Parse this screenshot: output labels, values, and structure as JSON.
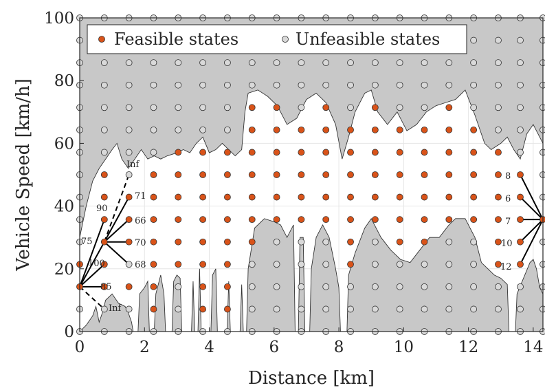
{
  "chart_data": {
    "type": "scatter",
    "xlabel": "Distance [km]",
    "ylabel": "Vehicle Speed [km/h]",
    "xlim": [
      0,
      14.3
    ],
    "ylim": [
      0,
      100
    ],
    "xticks": [
      0,
      2,
      4,
      6,
      8,
      10,
      12,
      14
    ],
    "yticks": [
      0,
      20,
      40,
      60,
      80,
      100
    ],
    "grid": true,
    "legend_position": "top",
    "legend": [
      {
        "label": "Feasible states",
        "color": "#d95319"
      },
      {
        "label": "Unfeasible states",
        "color": "#d9d9d9"
      }
    ],
    "x_grid_states": [
      0,
      0.76,
      1.52,
      2.28,
      3.04,
      3.8,
      4.56,
      5.32,
      6.08,
      6.84,
      7.6,
      8.36,
      9.12,
      9.88,
      10.64,
      11.4,
      12.16,
      12.92,
      13.6,
      14.3
    ],
    "y_grid_states": [
      0,
      7.14,
      14.29,
      21.43,
      28.57,
      35.71,
      42.86,
      50,
      57.14,
      64.29,
      71.43,
      78.57,
      85.71,
      92.86,
      100
    ],
    "upper_boundary": [
      [
        0,
        30
      ],
      [
        0.2,
        40
      ],
      [
        0.4,
        48
      ],
      [
        0.6,
        52
      ],
      [
        0.8,
        55
      ],
      [
        1,
        58
      ],
      [
        1.15,
        60
      ],
      [
        1.3,
        55
      ],
      [
        1.5,
        52
      ],
      [
        1.7,
        55
      ],
      [
        1.9,
        58
      ],
      [
        2.1,
        55
      ],
      [
        2.3,
        56
      ],
      [
        2.5,
        55
      ],
      [
        2.7,
        56
      ],
      [
        3.0,
        57
      ],
      [
        3.2,
        58
      ],
      [
        3.4,
        57
      ],
      [
        3.6,
        60
      ],
      [
        3.8,
        62
      ],
      [
        4.0,
        57
      ],
      [
        4.2,
        58
      ],
      [
        4.4,
        60
      ],
      [
        4.6,
        58
      ],
      [
        4.8,
        56
      ],
      [
        5.0,
        58
      ],
      [
        5.1,
        70
      ],
      [
        5.2,
        76
      ],
      [
        5.5,
        77
      ],
      [
        5.8,
        75
      ],
      [
        6.1,
        72
      ],
      [
        6.4,
        66
      ],
      [
        6.7,
        68
      ],
      [
        7.0,
        74
      ],
      [
        7.3,
        76
      ],
      [
        7.6,
        73
      ],
      [
        7.9,
        66
      ],
      [
        8.1,
        55
      ],
      [
        8.3,
        62
      ],
      [
        8.5,
        70
      ],
      [
        8.8,
        76
      ],
      [
        9.0,
        77
      ],
      [
        9.2,
        70
      ],
      [
        9.5,
        66
      ],
      [
        9.8,
        70
      ],
      [
        10.1,
        64
      ],
      [
        10.4,
        66
      ],
      [
        10.7,
        70
      ],
      [
        11.0,
        72
      ],
      [
        11.3,
        73
      ],
      [
        11.6,
        74
      ],
      [
        11.9,
        77
      ],
      [
        12.2,
        69
      ],
      [
        12.5,
        60
      ],
      [
        12.7,
        58
      ],
      [
        13.0,
        60
      ],
      [
        13.2,
        62
      ],
      [
        13.4,
        58
      ],
      [
        13.6,
        55
      ],
      [
        13.8,
        63
      ],
      [
        14.0,
        66
      ],
      [
        14.2,
        62
      ],
      [
        14.3,
        60
      ]
    ],
    "lower_boundary": [
      [
        0,
        0
      ],
      [
        0.2,
        2
      ],
      [
        0.4,
        5
      ],
      [
        0.5,
        8
      ],
      [
        0.6,
        3
      ],
      [
        0.7,
        6
      ],
      [
        0.8,
        10
      ],
      [
        1.0,
        12
      ],
      [
        1.2,
        9
      ],
      [
        1.4,
        8
      ],
      [
        1.5,
        6
      ],
      [
        1.6,
        3
      ],
      [
        1.65,
        0
      ],
      [
        1.8,
        0
      ],
      [
        1.85,
        12
      ],
      [
        2.0,
        14
      ],
      [
        2.1,
        16
      ],
      [
        2.15,
        0
      ],
      [
        2.3,
        0
      ],
      [
        2.35,
        12
      ],
      [
        2.5,
        18
      ],
      [
        2.6,
        12
      ],
      [
        2.65,
        0
      ],
      [
        2.85,
        0
      ],
      [
        2.9,
        16
      ],
      [
        3.0,
        18
      ],
      [
        3.1,
        17
      ],
      [
        3.15,
        0
      ],
      [
        3.45,
        0
      ],
      [
        3.5,
        16
      ],
      [
        3.55,
        0
      ],
      [
        3.65,
        0
      ],
      [
        3.7,
        20
      ],
      [
        3.75,
        0
      ],
      [
        4.05,
        0
      ],
      [
        4.1,
        18
      ],
      [
        4.2,
        20
      ],
      [
        4.25,
        0
      ],
      [
        4.55,
        0
      ],
      [
        4.6,
        16
      ],
      [
        4.65,
        0
      ],
      [
        4.95,
        0
      ],
      [
        5.0,
        15
      ],
      [
        5.05,
        0
      ],
      [
        5.15,
        0
      ],
      [
        5.2,
        20
      ],
      [
        5.4,
        33
      ],
      [
        5.7,
        36
      ],
      [
        6.0,
        35
      ],
      [
        6.2,
        34
      ],
      [
        6.4,
        30
      ],
      [
        6.6,
        34
      ],
      [
        6.65,
        0
      ],
      [
        6.75,
        0
      ],
      [
        6.8,
        30
      ],
      [
        6.9,
        30
      ],
      [
        6.95,
        0
      ],
      [
        7.1,
        0
      ],
      [
        7.15,
        20
      ],
      [
        7.3,
        30
      ],
      [
        7.5,
        34
      ],
      [
        7.7,
        30
      ],
      [
        7.9,
        20
      ],
      [
        8.0,
        14
      ],
      [
        8.05,
        0
      ],
      [
        8.25,
        0
      ],
      [
        8.3,
        18
      ],
      [
        8.5,
        25
      ],
      [
        8.8,
        33
      ],
      [
        9.0,
        36
      ],
      [
        9.3,
        30
      ],
      [
        9.6,
        26
      ],
      [
        9.9,
        23
      ],
      [
        10.2,
        22
      ],
      [
        10.5,
        26
      ],
      [
        10.8,
        30
      ],
      [
        11.1,
        30
      ],
      [
        11.4,
        34
      ],
      [
        11.6,
        36
      ],
      [
        11.9,
        36
      ],
      [
        12.2,
        30
      ],
      [
        12.4,
        22
      ],
      [
        12.6,
        20
      ],
      [
        12.8,
        18
      ],
      [
        13.0,
        17
      ],
      [
        13.2,
        15
      ],
      [
        13.25,
        0
      ],
      [
        13.45,
        0
      ],
      [
        13.5,
        12
      ],
      [
        13.7,
        17
      ],
      [
        13.9,
        22
      ],
      [
        14.0,
        23
      ],
      [
        14.1,
        20
      ],
      [
        14.2,
        14
      ],
      [
        14.3,
        12
      ]
    ],
    "feasible_overrides": [
      [
        0,
        21.43
      ],
      [
        0,
        14.29
      ],
      [
        0.76,
        50
      ],
      [
        0.76,
        42.86
      ],
      [
        0.76,
        28.57
      ],
      [
        0.76,
        35.71
      ],
      [
        0.76,
        21.43
      ],
      [
        0.76,
        14.29
      ],
      [
        1.52,
        14.29
      ],
      [
        1.52,
        28.57
      ],
      [
        1.52,
        35.71
      ],
      [
        1.52,
        42.86
      ],
      [
        13.6,
        21.43
      ],
      [
        13.6,
        28.57
      ],
      [
        13.6,
        35.71
      ],
      [
        13.6,
        42.86
      ],
      [
        13.6,
        50
      ],
      [
        14.3,
        35.71
      ]
    ],
    "transitions_start": {
      "origin": [
        0,
        14.29
      ],
      "edges": [
        {
          "to": [
            0.76,
            35.71
          ],
          "label": "90",
          "style": "solid"
        },
        {
          "to": [
            0.76,
            28.57
          ],
          "label": "75",
          "style": "solid"
        },
        {
          "to": [
            0.76,
            21.43
          ],
          "label": "100",
          "style": "solid"
        },
        {
          "to": [
            0.76,
            14.29
          ],
          "label": "85",
          "style": "solid"
        },
        {
          "to": [
            0.76,
            7.14
          ],
          "label": "Inf",
          "style": "dashed"
        }
      ],
      "second_origin": [
        0.76,
        28.57
      ],
      "second_edges": [
        {
          "to": [
            1.52,
            50
          ],
          "label": "Inf",
          "style": "dashed"
        },
        {
          "to": [
            1.52,
            42.86
          ],
          "label": "71",
          "style": "solid"
        },
        {
          "to": [
            1.52,
            35.71
          ],
          "label": "66",
          "style": "solid"
        },
        {
          "to": [
            1.52,
            28.57
          ],
          "label": "70",
          "style": "solid"
        },
        {
          "to": [
            1.52,
            21.43
          ],
          "label": "68",
          "style": "solid"
        }
      ]
    },
    "transitions_end": {
      "target": [
        14.3,
        35.71
      ],
      "edges": [
        {
          "from": [
            13.6,
            50
          ],
          "label": "8"
        },
        {
          "from": [
            13.6,
            42.86
          ],
          "label": "6"
        },
        {
          "from": [
            13.6,
            35.71
          ],
          "label": "7"
        },
        {
          "from": [
            13.6,
            28.57
          ],
          "label": "10"
        },
        {
          "from": [
            13.6,
            21.43
          ],
          "label": "12"
        }
      ]
    }
  }
}
